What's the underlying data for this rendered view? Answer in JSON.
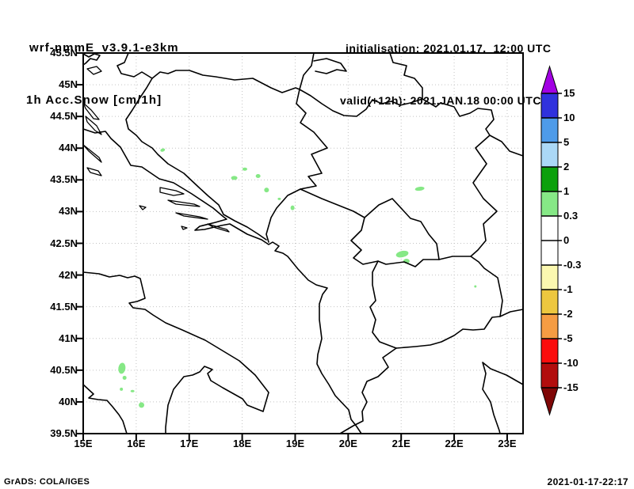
{
  "header": {
    "title_line1": "wrf-nmmE_v3.9.1-e3km",
    "title_line2": "1h Acc.Snow [cm/1h]",
    "init_line": "initialisation: 2021.01.17.  12:00 UTC",
    "valid_line": "valid(+12h): 2021.JAN.18 00:00 UTC"
  },
  "axes": {
    "lat_ticks": [
      "45.5N",
      "45N",
      "44.5N",
      "44N",
      "43.5N",
      "43N",
      "42.5N",
      "42N",
      "41.5N",
      "41N",
      "40.5N",
      "40N",
      "39.5N"
    ],
    "lon_ticks": [
      "15E",
      "16E",
      "17E",
      "18E",
      "19E",
      "20E",
      "21E",
      "22E",
      "23E"
    ],
    "lat_range": [
      39.5,
      45.5
    ],
    "lon_range": [
      15.0,
      23.3
    ]
  },
  "colorbar": {
    "labels": [
      "15",
      "10",
      "5",
      "2",
      "1",
      "0.3",
      "0",
      "-0.3",
      "-1",
      "-2",
      "-5",
      "-10",
      "-15"
    ],
    "band_colors": [
      "#A201E3",
      "#3032DD",
      "#4E9BE9",
      "#ABD8F6",
      "#0CA00C",
      "#86E886",
      "#FFFFFF",
      "#FFFFFF",
      "#FBF8B0",
      "#EDC73F",
      "#F59C43",
      "#FB0D0D",
      "#B20D0D",
      "#7F0707"
    ]
  },
  "colors": {
    "map_line": "#000000",
    "grid": "#C3C3C3",
    "snow_patch": "#86E886"
  },
  "snow": {
    "patches": [
      {
        "lon": 16.5,
        "lat": 43.97,
        "rx": 3,
        "ry": 2,
        "rot": -20
      },
      {
        "lon": 17.85,
        "lat": 43.53,
        "rx": 4,
        "ry": 2.5,
        "rot": 0
      },
      {
        "lon": 18.05,
        "lat": 43.67,
        "rx": 3,
        "ry": 2,
        "rot": 0
      },
      {
        "lon": 18.3,
        "lat": 43.56,
        "rx": 3,
        "ry": 2.5,
        "rot": 0
      },
      {
        "lon": 18.46,
        "lat": 43.34,
        "rx": 3,
        "ry": 3,
        "rot": 0
      },
      {
        "lon": 18.7,
        "lat": 43.2,
        "rx": 2,
        "ry": 1.5,
        "rot": 0
      },
      {
        "lon": 18.95,
        "lat": 43.06,
        "rx": 2.5,
        "ry": 3,
        "rot": 0
      },
      {
        "lon": 21.35,
        "lat": 43.36,
        "rx": 6,
        "ry": 2.5,
        "rot": -8
      },
      {
        "lon": 21.02,
        "lat": 42.33,
        "rx": 8,
        "ry": 4,
        "rot": -12
      },
      {
        "lon": 21.1,
        "lat": 42.22,
        "rx": 4,
        "ry": 3,
        "rot": 0
      },
      {
        "lon": 22.4,
        "lat": 41.82,
        "rx": 1.5,
        "ry": 1.5,
        "rot": 0
      },
      {
        "lon": 15.73,
        "lat": 40.53,
        "rx": 4.5,
        "ry": 7,
        "rot": 8
      },
      {
        "lon": 15.78,
        "lat": 40.38,
        "rx": 2.5,
        "ry": 2.5,
        "rot": 0
      },
      {
        "lon": 15.72,
        "lat": 40.2,
        "rx": 2,
        "ry": 2,
        "rot": 0
      },
      {
        "lon": 15.93,
        "lat": 40.17,
        "rx": 2.5,
        "ry": 1.5,
        "rot": 0
      },
      {
        "lon": 16.1,
        "lat": 39.95,
        "rx": 3.5,
        "ry": 3.5,
        "rot": 0
      }
    ]
  },
  "footer": {
    "left": "GrADS: COLA/IGES",
    "right": "2021-01-17-22:17"
  }
}
